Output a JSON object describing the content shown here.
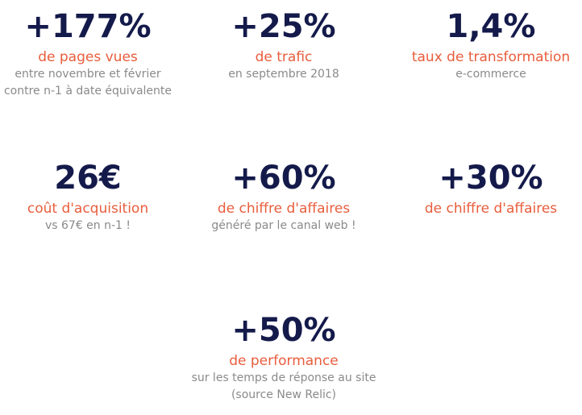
{
  "stats": [
    {
      "value": "+177%",
      "label": "de pages vues",
      "desc": "entre novembre et février contre n-1 à date équivalente"
    },
    {
      "value": "+25%",
      "label": "de trafic",
      "desc": "en septembre 2018"
    },
    {
      "value": "1,4%",
      "label": "taux de transformation",
      "desc": "e-commerce"
    },
    {
      "value": "26€",
      "label": "coût d'acquisition",
      "desc": "vs 67€ en n-1 !"
    },
    {
      "value": "+60%",
      "label": "de chiffre d'affaires",
      "desc": "généré par le canal web !"
    },
    {
      "value": "+30%",
      "label": "de chiffre d'affaires",
      "desc": ""
    },
    {
      "value": "+50%",
      "label": "de performance",
      "desc": "sur les temps de réponse au site (source New Relic)"
    }
  ],
  "colors": {
    "value": "#141a4a",
    "label": "#e85d3c",
    "desc": "#8a8a8a"
  }
}
